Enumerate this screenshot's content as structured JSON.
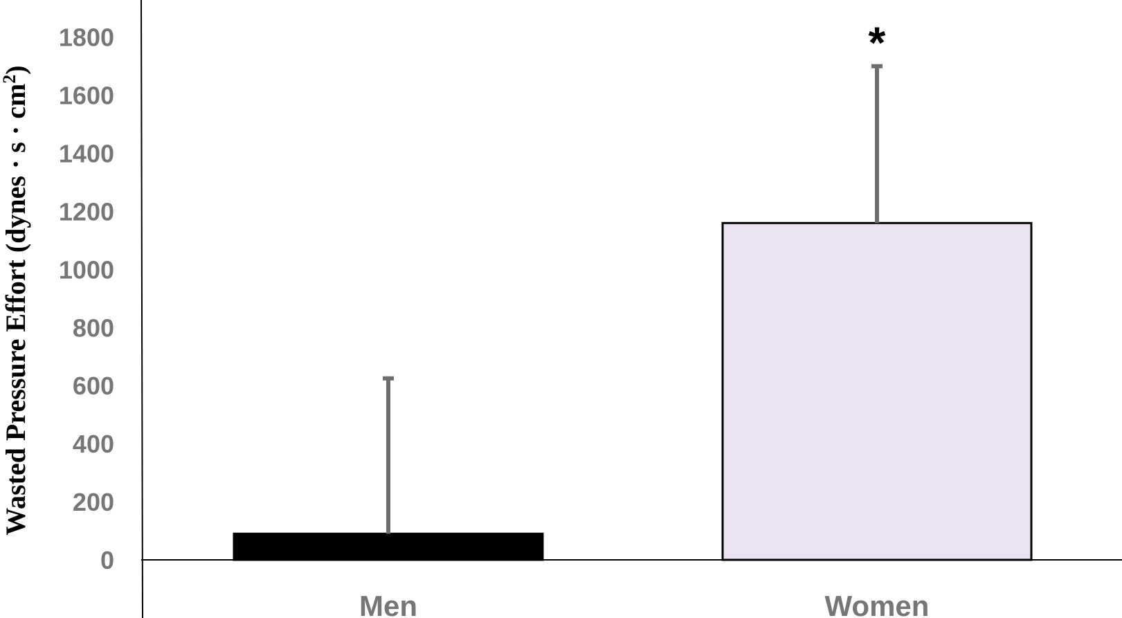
{
  "chart_data": {
    "type": "bar",
    "title": "",
    "ylabel": "Wasted Pressure Effort (dynes · s · cm",
    "ylabel_superscript": "2",
    "ylabel_close": ")",
    "xlabel": "",
    "ylim": [
      0,
      1900
    ],
    "yticks": [
      0,
      200,
      400,
      600,
      800,
      1000,
      1200,
      1400,
      1600,
      1800
    ],
    "grid": false,
    "categories": [
      "Men",
      "Women"
    ],
    "values": [
      90,
      1160
    ],
    "error_upper": [
      625,
      1700
    ],
    "bar_colors": [
      "#000000",
      "#ebe3f1"
    ],
    "bar_edge_color": "#000000",
    "error_bar_color": "#6e6e6e",
    "annotations": [
      {
        "category": "Women",
        "text": "*"
      }
    ]
  }
}
